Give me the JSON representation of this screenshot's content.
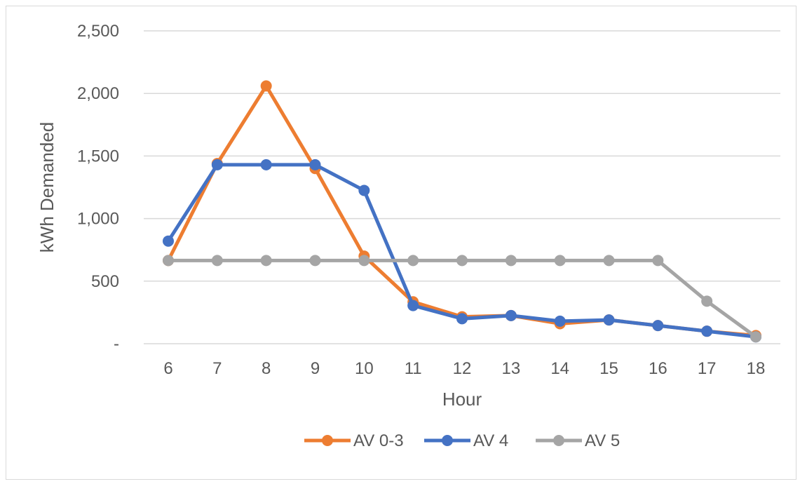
{
  "chart_data": {
    "type": "line",
    "x": [
      6,
      7,
      8,
      9,
      10,
      11,
      12,
      13,
      14,
      15,
      16,
      17,
      18
    ],
    "xlabel": "Hour",
    "ylabel": "kWh Demanded",
    "ylim": [
      0,
      2500
    ],
    "yticks": [
      0,
      500,
      1000,
      1500,
      2000,
      2500
    ],
    "ytick_labels": [
      "-",
      "500",
      "1,000",
      "1,500",
      "2,000",
      "2,500"
    ],
    "grid": "horizontal",
    "legend_position": "bottom",
    "series": [
      {
        "name": "AV 0-3",
        "color": "#ED7D31",
        "values": [
          665,
          1440,
          2060,
          1400,
          700,
          335,
          215,
          225,
          160,
          190,
          145,
          100,
          65
        ]
      },
      {
        "name": "AV 4",
        "color": "#4472C4",
        "values": [
          820,
          1430,
          1430,
          1430,
          1225,
          305,
          200,
          225,
          180,
          190,
          145,
          100,
          55
        ]
      },
      {
        "name": "AV 5",
        "color": "#A5A5A5",
        "values": [
          665,
          665,
          665,
          665,
          665,
          665,
          665,
          665,
          665,
          665,
          665,
          340,
          55
        ]
      }
    ]
  }
}
